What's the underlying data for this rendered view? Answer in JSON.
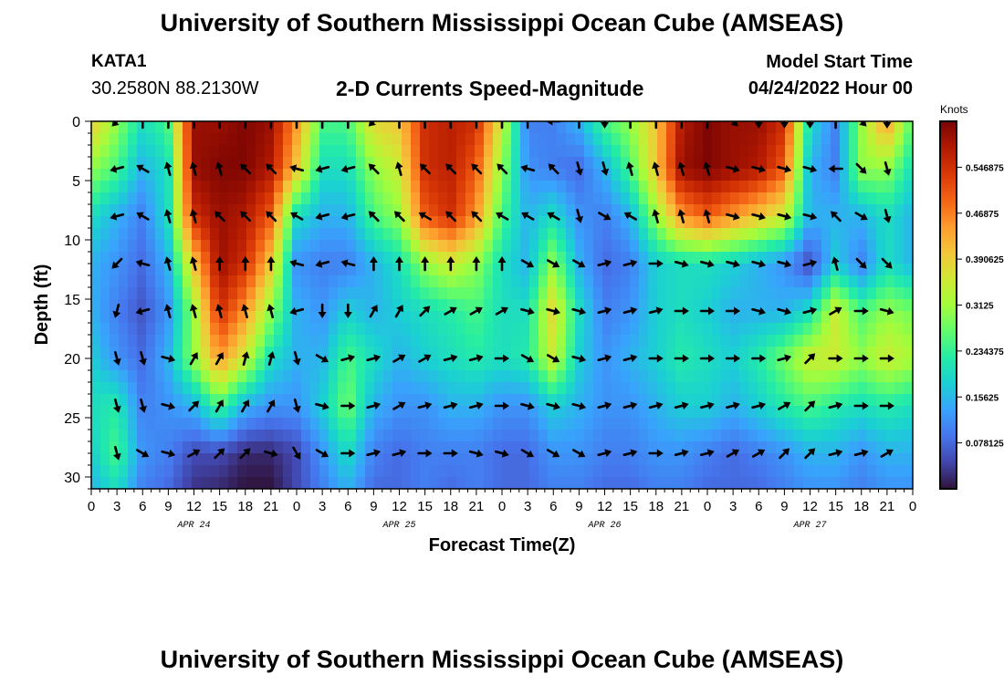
{
  "header": {
    "title": "University of Southern Mississippi Ocean Cube (AMSEAS)",
    "station_id": "KATA1",
    "station_coords": "30.2580N  88.2130W",
    "subtitle": "2-D Currents Speed-Magnitude",
    "model_start_label": "Model Start Time",
    "model_start_value": "04/24/2022 Hour 00"
  },
  "footer": {
    "title": "University of Southern Mississippi Ocean Cube (AMSEAS)"
  },
  "chart_data": {
    "type": "heatmap",
    "title": "2-D Currents Speed-Magnitude",
    "xlabel": "Forecast Time(Z)",
    "ylabel": "Depth (ft)",
    "xlim": [
      0,
      96
    ],
    "ylim": [
      31,
      0
    ],
    "x_tick_labels": [
      "0",
      "3",
      "6",
      "9",
      "12",
      "15",
      "18",
      "21",
      "0",
      "3",
      "6",
      "9",
      "12",
      "15",
      "18",
      "21",
      "0",
      "3",
      "6",
      "9",
      "12",
      "15",
      "18",
      "21",
      "0",
      "3",
      "6",
      "9",
      "12",
      "15",
      "18",
      "21",
      "0"
    ],
    "y_ticks": [
      0,
      5,
      10,
      15,
      20,
      25,
      30
    ],
    "date_labels": [
      {
        "hour": 12,
        "label": "APR 24"
      },
      {
        "hour": 36,
        "label": "APR 25"
      },
      {
        "hour": 60,
        "label": "APR 26"
      },
      {
        "hour": 84,
        "label": "APR 27"
      }
    ],
    "colorbar": {
      "unit": "Knots",
      "min": 0,
      "max": 0.625,
      "tick_labels": [
        "0.078125",
        "0.15625",
        "0.234375",
        "0.3125",
        "0.390625",
        "0.46875",
        "0.546875"
      ]
    },
    "hours": [
      0,
      3,
      6,
      9,
      12,
      15,
      18,
      21,
      24,
      27,
      30,
      33,
      36,
      39,
      42,
      45,
      48,
      51,
      54,
      57,
      60,
      63,
      66,
      69,
      72,
      75,
      78,
      81,
      84,
      87,
      90,
      93,
      96
    ],
    "depths": [
      0,
      4,
      8,
      12,
      16,
      20,
      24,
      28,
      31
    ],
    "speed_knots": [
      [
        0.4,
        0.3,
        0.2,
        0.25,
        0.6,
        0.6,
        0.62,
        0.6,
        0.45,
        0.25,
        0.25,
        0.38,
        0.4,
        0.55,
        0.57,
        0.55,
        0.35,
        0.1,
        0.1,
        0.15,
        0.25,
        0.3,
        0.4,
        0.58,
        0.62,
        0.6,
        0.6,
        0.55,
        0.2,
        0.1,
        0.3,
        0.45,
        0.25
      ],
      [
        0.3,
        0.25,
        0.15,
        0.2,
        0.6,
        0.62,
        0.62,
        0.58,
        0.4,
        0.2,
        0.2,
        0.3,
        0.35,
        0.55,
        0.57,
        0.5,
        0.3,
        0.12,
        0.1,
        0.08,
        0.15,
        0.25,
        0.4,
        0.6,
        0.62,
        0.6,
        0.58,
        0.5,
        0.15,
        0.1,
        0.3,
        0.3,
        0.2
      ],
      [
        0.2,
        0.15,
        0.1,
        0.2,
        0.55,
        0.6,
        0.58,
        0.5,
        0.2,
        0.15,
        0.15,
        0.25,
        0.3,
        0.5,
        0.55,
        0.45,
        0.25,
        0.15,
        0.2,
        0.12,
        0.1,
        0.15,
        0.3,
        0.45,
        0.5,
        0.45,
        0.4,
        0.35,
        0.15,
        0.15,
        0.15,
        0.2,
        0.15
      ],
      [
        0.15,
        0.12,
        0.08,
        0.15,
        0.4,
        0.6,
        0.55,
        0.4,
        0.12,
        0.1,
        0.1,
        0.15,
        0.2,
        0.3,
        0.35,
        0.3,
        0.2,
        0.15,
        0.3,
        0.15,
        0.08,
        0.1,
        0.18,
        0.2,
        0.2,
        0.18,
        0.15,
        0.12,
        0.05,
        0.18,
        0.1,
        0.2,
        0.15
      ],
      [
        0.15,
        0.1,
        0.06,
        0.12,
        0.3,
        0.55,
        0.45,
        0.3,
        0.15,
        0.12,
        0.18,
        0.15,
        0.18,
        0.2,
        0.22,
        0.25,
        0.2,
        0.2,
        0.38,
        0.2,
        0.1,
        0.12,
        0.18,
        0.2,
        0.18,
        0.15,
        0.15,
        0.15,
        0.2,
        0.35,
        0.25,
        0.3,
        0.28
      ],
      [
        0.18,
        0.12,
        0.08,
        0.15,
        0.3,
        0.45,
        0.35,
        0.2,
        0.15,
        0.15,
        0.25,
        0.2,
        0.15,
        0.18,
        0.2,
        0.22,
        0.2,
        0.22,
        0.35,
        0.18,
        0.12,
        0.15,
        0.18,
        0.22,
        0.2,
        0.18,
        0.22,
        0.28,
        0.35,
        0.35,
        0.3,
        0.35,
        0.32
      ],
      [
        0.2,
        0.22,
        0.1,
        0.12,
        0.15,
        0.25,
        0.15,
        0.12,
        0.12,
        0.18,
        0.28,
        0.15,
        0.12,
        0.12,
        0.15,
        0.15,
        0.12,
        0.12,
        0.18,
        0.15,
        0.12,
        0.12,
        0.15,
        0.18,
        0.18,
        0.15,
        0.18,
        0.22,
        0.25,
        0.22,
        0.2,
        0.22,
        0.2
      ],
      [
        0.18,
        0.25,
        0.12,
        0.1,
        0.05,
        0.05,
        0.02,
        0.02,
        0.05,
        0.12,
        0.2,
        0.1,
        0.08,
        0.1,
        0.1,
        0.1,
        0.08,
        0.08,
        0.12,
        0.12,
        0.1,
        0.1,
        0.12,
        0.12,
        0.1,
        0.08,
        0.1,
        0.12,
        0.15,
        0.15,
        0.12,
        0.15,
        0.15
      ],
      [
        0.15,
        0.2,
        0.1,
        0.08,
        0.03,
        0.02,
        0.0,
        0.0,
        0.05,
        0.1,
        0.15,
        0.08,
        0.08,
        0.1,
        0.08,
        0.1,
        0.08,
        0.08,
        0.1,
        0.1,
        0.08,
        0.08,
        0.1,
        0.1,
        0.08,
        0.08,
        0.08,
        0.1,
        0.12,
        0.12,
        0.1,
        0.12,
        0.12
      ]
    ],
    "arrow_hours": [
      3,
      6,
      9,
      12,
      15,
      18,
      21,
      24,
      27,
      30,
      33,
      36,
      39,
      42,
      45,
      48,
      51,
      54,
      57,
      60,
      63,
      66,
      69,
      72,
      75,
      78,
      81,
      84,
      87,
      90,
      93
    ],
    "arrow_depths": [
      0,
      4,
      8,
      12,
      16,
      20,
      24,
      28
    ],
    "arrow_directions_deg": [
      [
        225,
        0,
        0,
        0,
        0,
        0,
        0,
        0,
        0,
        0,
        225,
        0,
        0,
        0,
        0,
        0,
        0,
        270,
        0,
        180,
        0,
        0,
        0,
        0,
        135,
        180,
        180,
        180,
        0,
        135,
        180
      ],
      [
        255,
        300,
        345,
        345,
        345,
        315,
        315,
        285,
        255,
        255,
        315,
        345,
        315,
        315,
        315,
        315,
        285,
        315,
        165,
        165,
        345,
        345,
        345,
        345,
        105,
        105,
        105,
        105,
        270,
        135,
        165
      ],
      [
        255,
        300,
        345,
        345,
        315,
        315,
        315,
        300,
        255,
        255,
        315,
        315,
        300,
        315,
        315,
        300,
        300,
        300,
        165,
        120,
        300,
        345,
        345,
        345,
        105,
        105,
        105,
        105,
        315,
        120,
        165
      ],
      [
        225,
        285,
        345,
        345,
        0,
        0,
        0,
        285,
        255,
        285,
        0,
        0,
        0,
        0,
        0,
        0,
        120,
        120,
        120,
        75,
        75,
        90,
        105,
        105,
        105,
        105,
        105,
        75,
        345,
        135,
        135
      ],
      [
        195,
        255,
        345,
        345,
        345,
        345,
        345,
        255,
        180,
        180,
        30,
        30,
        45,
        60,
        60,
        60,
        105,
        105,
        105,
        75,
        75,
        75,
        90,
        90,
        90,
        105,
        105,
        75,
        60,
        90,
        105
      ],
      [
        165,
        165,
        105,
        30,
        30,
        15,
        15,
        165,
        120,
        75,
        75,
        60,
        60,
        75,
        75,
        90,
        120,
        120,
        105,
        75,
        75,
        90,
        90,
        90,
        90,
        90,
        75,
        45,
        90,
        90,
        90
      ],
      [
        165,
        165,
        105,
        45,
        30,
        30,
        30,
        165,
        105,
        90,
        75,
        60,
        75,
        75,
        75,
        90,
        105,
        105,
        105,
        75,
        75,
        75,
        75,
        75,
        75,
        75,
        60,
        45,
        75,
        90,
        90
      ],
      [
        165,
        120,
        105,
        60,
        45,
        45,
        105,
        150,
        120,
        90,
        75,
        75,
        90,
        90,
        105,
        105,
        120,
        120,
        120,
        75,
        75,
        90,
        75,
        75,
        60,
        60,
        45,
        45,
        75,
        75,
        60
      ]
    ]
  }
}
